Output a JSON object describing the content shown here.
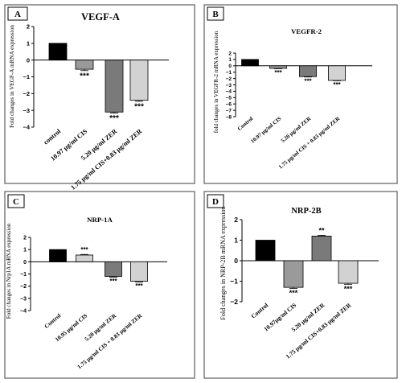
{
  "chart_data": [
    {
      "panel": "A",
      "type": "bar",
      "title": "VEGF-A",
      "ylabel": "Fold changes in VEGF-A mRNA expression",
      "categories": [
        "control",
        "10.97 µg/ml CIS",
        "5.20 µg/ml ZER",
        "1.75 µg/ml CIS+0.83 µg/ml ZER"
      ],
      "values": [
        1.0,
        -0.55,
        -3.1,
        -2.4
      ],
      "errors": [
        0.0,
        0.08,
        0.06,
        0.06
      ],
      "significance": [
        "",
        "***",
        "***",
        "***"
      ],
      "colors": [
        "#000000",
        "#9a9a9a",
        "#7a7a7a",
        "#d2d2d2"
      ],
      "ylim": [
        -4,
        2
      ],
      "yticks": [
        2,
        1,
        0,
        -1,
        -2,
        -3,
        -4
      ],
      "grid": false,
      "legend": "none"
    },
    {
      "panel": "B",
      "type": "bar",
      "title": "VEGFR-2",
      "ylabel": "fold changes in VEGFR-2 mRNA expression",
      "categories": [
        "Control",
        "10.97 µg/ml CIS",
        "5.20 µg/ml ZER",
        "1.75 µg/ml CIS + 0.83 µg/ml ZER"
      ],
      "values": [
        1.0,
        -0.4,
        -1.7,
        -2.3
      ],
      "errors": [
        0.0,
        0.06,
        0.06,
        0.05
      ],
      "significance": [
        "",
        "***",
        "***",
        "***"
      ],
      "colors": [
        "#000000",
        "#9a9a9a",
        "#7a7a7a",
        "#d2d2d2"
      ],
      "ylim": [
        -8,
        2
      ],
      "yticks": [
        2,
        1,
        0,
        -1,
        -2,
        -3,
        -4,
        -5,
        -6,
        -7,
        -8
      ],
      "grid": false,
      "legend": "none"
    },
    {
      "panel": "C",
      "type": "bar",
      "title": "NRP-1A",
      "ylabel": "Fold changes in Nrp1A mRNA expression",
      "categories": [
        "Control",
        "10.95 µg/ml CIS",
        "5.20 µg/ml ZER",
        "1.75 µg/ml CIS + 0.83 µg/ml ZER"
      ],
      "values": [
        1.0,
        0.55,
        -1.2,
        -1.6
      ],
      "errors": [
        0.0,
        0.05,
        0.06,
        0.05
      ],
      "significance": [
        "",
        "***",
        "***",
        "***"
      ],
      "colors": [
        "#000000",
        "#d2d2d2",
        "#7a7a7a",
        "#d2d2d2"
      ],
      "ylim": [
        -4,
        2
      ],
      "yticks": [
        2,
        1,
        0,
        -1,
        -2,
        -3,
        -4
      ],
      "grid": false,
      "legend": "none"
    },
    {
      "panel": "D",
      "type": "bar",
      "title": "NRP-2B",
      "ylabel": "Fold changes in NRP-2B mRNA expression",
      "categories": [
        "Control",
        "10.97µg/ml CIS",
        "5.20 µg/ml ZER",
        "1.75 µg/ml CIS+0.83 µg/ml ZER"
      ],
      "values": [
        1.0,
        -1.3,
        1.2,
        -1.1
      ],
      "errors": [
        0.0,
        0.05,
        0.04,
        0.05
      ],
      "significance": [
        "",
        "***",
        "**",
        "***"
      ],
      "colors": [
        "#000000",
        "#9a9a9a",
        "#7a7a7a",
        "#d2d2d2"
      ],
      "ylim": [
        -2,
        2
      ],
      "yticks": [
        2,
        1,
        0,
        -1,
        -2
      ],
      "grid": false,
      "legend": "none"
    }
  ]
}
